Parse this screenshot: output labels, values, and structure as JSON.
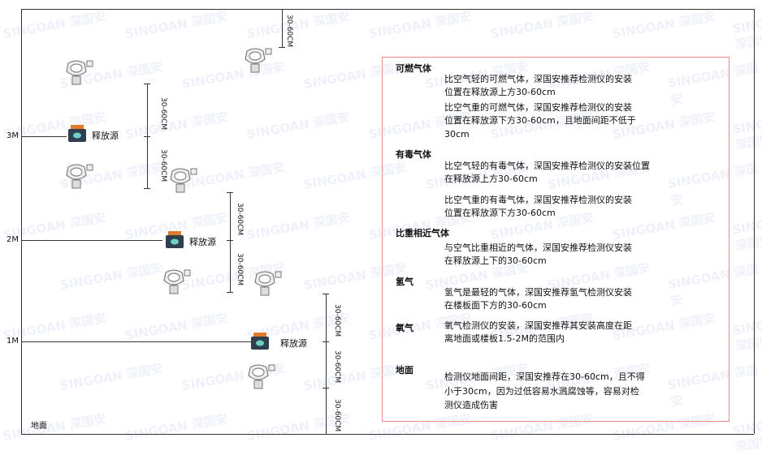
{
  "levels": {
    "m3": "3M",
    "m2": "2M",
    "m1": "1M",
    "ground": "地面"
  },
  "dimension_label": "30-60CM",
  "source_label": "释放源",
  "watermark": "SINGOAN 深国安",
  "colors": {
    "panel_border": "#e88888",
    "source_icon": "#2e3f4f",
    "source_top": "#e07a2c"
  },
  "panel": {
    "sections": [
      {
        "heading": "可燃气体",
        "paragraphs": [
          [
            "比空气轻的可燃气体，深国安推荐检测仪的安装",
            "位置在释放源上方30-60cm"
          ],
          [
            "比空气重的可燃气体，深国安推荐检测仪的安装",
            "位置在释放源下方30-60cm，且地面间距不低于",
            "30cm"
          ]
        ]
      },
      {
        "heading": "有毒气体",
        "paragraphs": [
          [
            "比空气轻的有毒气体，深国安推荐检测仪的安装位置",
            "在释放源上方30-60cm"
          ],
          [
            "比空气重的有毒气体，深国安推荐检测仪的安装",
            "位置在释放源下方30-60cm"
          ]
        ]
      },
      {
        "heading": "比重相近气体",
        "paragraphs": [
          [
            "与空气比重相近的气体，深国安推荐检测仪安装",
            "在释放源上下的30-60cm"
          ]
        ]
      },
      {
        "heading": "氢气",
        "paragraphs": [
          [
            "氢气是最轻的气体，深国安推荐氢气检测仪安装",
            "在楼板面下方的30-60cm"
          ]
        ]
      },
      {
        "heading": "氧气",
        "paragraphs": [
          [
            "氧气检测仪的安装，深国安推荐其安装高度在距",
            "离地面或楼板1.5-2M的范围内"
          ]
        ]
      },
      {
        "heading": "地面",
        "paragraphs": [
          [
            "检测仪地面间距，深国安推荐在30-60cm，且不得",
            "小于30cm，因为过低容易水溅腐蚀等，容易对检",
            "测仪造成伤害"
          ]
        ]
      }
    ]
  }
}
